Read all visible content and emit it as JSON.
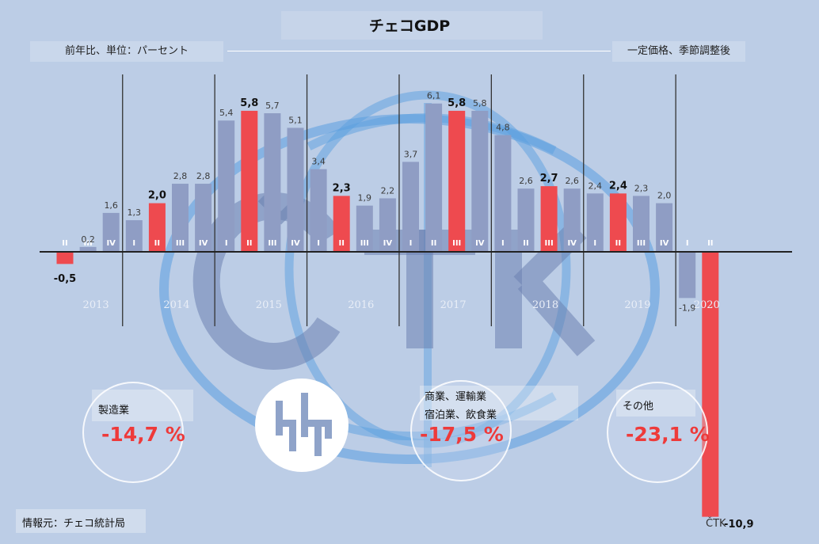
{
  "header": {
    "title": "チェコGDP",
    "subtitle_left": "前年比、単位：パーセント",
    "subtitle_right": "一定価格、季節調整後"
  },
  "chart_data": {
    "type": "bar",
    "unit": "%",
    "categories": [
      "2013 II",
      "2013 III",
      "2013 IV",
      "2014 I",
      "2014 II",
      "2014 III",
      "2014 IV",
      "2015 I",
      "2015 II",
      "2015 III",
      "2015 IV",
      "2016 I",
      "2016 II",
      "2016 III",
      "2016 IV",
      "2017 I",
      "2017 II",
      "2017 III",
      "2017 IV",
      "2018 I",
      "2018 II",
      "2018 III",
      "2018 IV",
      "2019 I",
      "2019 II",
      "2019 III",
      "2019 IV",
      "2020 I",
      "2020 II"
    ],
    "quarter_labels": [
      "II",
      "III",
      "IV",
      "I",
      "II",
      "III",
      "IV",
      "I",
      "II",
      "III",
      "IV",
      "I",
      "II",
      "III",
      "IV",
      "I",
      "II",
      "III",
      "IV",
      "I",
      "II",
      "III",
      "IV",
      "I",
      "II",
      "III",
      "IV",
      "I",
      "II"
    ],
    "value_labels": [
      "-0,5",
      "0,2",
      "1,6",
      "1,3",
      "2,0",
      "2,8",
      "2,8",
      "5,4",
      "5,8",
      "5,7",
      "5,1",
      "3,4",
      "2,3",
      "1,9",
      "2,2",
      "3,7",
      "6,1",
      "5,8",
      "5,8",
      "4,8",
      "2,6",
      "2,7",
      "2,6",
      "2,4",
      "2,4",
      "2,3",
      "2,0",
      "-1,9",
      "-10,9"
    ],
    "values": [
      -0.5,
      0.2,
      1.6,
      1.3,
      2.0,
      2.8,
      2.8,
      5.4,
      5.8,
      5.7,
      5.1,
      3.4,
      2.3,
      1.9,
      2.2,
      3.7,
      6.1,
      5.8,
      5.8,
      4.8,
      2.6,
      2.7,
      2.6,
      2.4,
      2.4,
      2.3,
      2.0,
      -1.9,
      -10.9
    ],
    "highlighted": [
      true,
      false,
      false,
      false,
      true,
      false,
      false,
      false,
      true,
      false,
      false,
      false,
      true,
      false,
      false,
      false,
      false,
      true,
      false,
      false,
      false,
      true,
      false,
      false,
      true,
      false,
      false,
      false,
      true
    ],
    "years": [
      "2013",
      "2014",
      "2015",
      "2016",
      "2017",
      "2018",
      "2019",
      "2020"
    ],
    "colors": {
      "highlight": "#ee4a4f",
      "normal": "#8f9dc4",
      "axis": "#222222"
    }
  },
  "breakdown": [
    {
      "label_lines": [
        "製造業"
      ],
      "value": "-14,7 %"
    },
    {
      "label_lines": [
        "商業、運輸業",
        "宿泊業、飲食業"
      ],
      "value": "-17,5 %"
    },
    {
      "label_lines": [
        "その他"
      ],
      "value": "-23,1 %"
    }
  ],
  "footer": {
    "source": "情報元：チェコ統計局",
    "agency": "ČTK"
  }
}
